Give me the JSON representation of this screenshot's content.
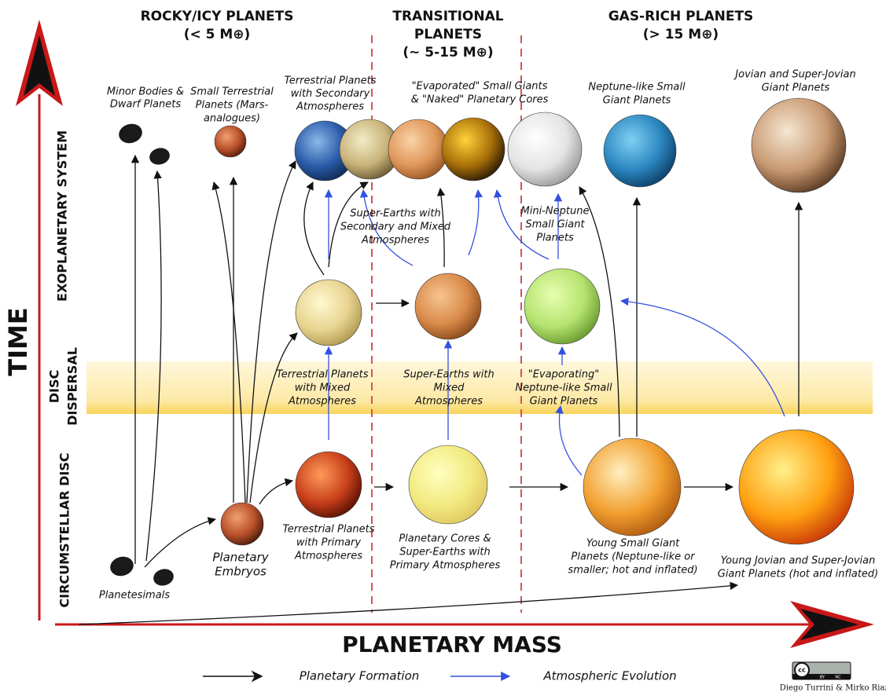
{
  "axes": {
    "time": "TIME",
    "mass": "PLANETARY MASS"
  },
  "columns": [
    {
      "lines": [
        "ROCKY/ICY PLANETS",
        "(< 5 M⊕)"
      ]
    },
    {
      "lines": [
        "TRANSITIONAL",
        "PLANETS",
        "(~ 5-15 M⊕)"
      ]
    },
    {
      "lines": [
        "GAS-RICH PLANETS",
        "(> 15 M⊕)"
      ]
    }
  ],
  "phases": [
    {
      "lines": [
        "EXOPLANETARY SYSTEM"
      ]
    },
    {
      "lines": [
        "DISC",
        "DISPERSAL"
      ]
    },
    {
      "lines": [
        "CIRCUMSTELLAR DISC"
      ]
    }
  ],
  "nodes": [
    {
      "lines": [
        "Minor Bodies &",
        "Dwarf Planets"
      ]
    },
    {
      "lines": [
        "Small Terrestrial",
        "Planets (Mars-",
        "analogues)"
      ]
    },
    {
      "lines": [
        "Terrestrial Planets",
        "with Secondary",
        "Atmospheres"
      ]
    },
    {
      "lines": [
        "\"Evaporated\" Small Giants",
        "&  \"Naked\" Planetary Cores"
      ]
    },
    {
      "lines": [
        "Neptune-like Small",
        "Giant Planets"
      ]
    },
    {
      "lines": [
        "Jovian and Super-Jovian",
        "Giant Planets"
      ]
    },
    {
      "lines": [
        "Super-Earths with",
        "Secondary and Mixed",
        "Atmospheres"
      ]
    },
    {
      "lines": [
        "Mini-Neptune",
        "Small Giant",
        "Planets"
      ]
    },
    {
      "lines": [
        "Terrestrial Planets",
        "with Mixed",
        "Atmospheres"
      ]
    },
    {
      "lines": [
        "Super-Earths with",
        "Mixed",
        "Atmospheres"
      ]
    },
    {
      "lines": [
        "\"Evaporating\"",
        "Neptune-like Small",
        "Giant Planets"
      ]
    },
    {
      "lines": [
        "Terrestrial Planets",
        "with Primary",
        "Atmospheres"
      ]
    },
    {
      "lines": [
        "Planetary",
        "Embryos"
      ]
    },
    {
      "lines": [
        "Planetesimals"
      ]
    },
    {
      "lines": [
        "Planetary Cores &",
        "Super-Earths with",
        "Primary Atmospheres"
      ]
    },
    {
      "lines": [
        "Young Small Giant",
        "Planets (Neptune-like or",
        "smaller; hot and inflated)"
      ]
    },
    {
      "lines": [
        "Young Jovian and Super-Jovian",
        "Giant Planets (hot and inflated)"
      ]
    }
  ],
  "legend": [
    "Planetary Formation",
    "Atmospheric Evolution"
  ],
  "license": [
    "cc",
    "BY",
    "NC"
  ],
  "credit": "Diego Turrini & Mirko Riazzoli"
}
